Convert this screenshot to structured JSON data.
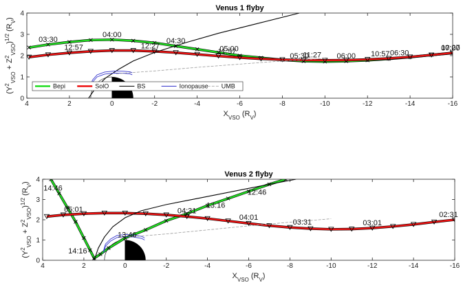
{
  "colors": {
    "bepi": "#22dd22",
    "solo": "#ee1111",
    "bs": "#000000",
    "ionopause": "#3333cc",
    "umb": "#999999",
    "axis": "#222222"
  },
  "legend_labels": [
    "Bepi",
    "SolO",
    "BS",
    "Ionopause",
    "UMB"
  ],
  "chart_data": [
    {
      "type": "line",
      "title": "Venus 1 flyby",
      "xlabel": "X_VSO (R_V)",
      "ylabel": "(Y²_VSO + Z²_VSO)^1/2 (R_V)",
      "xlim": [
        4,
        -16
      ],
      "ylim": [
        0,
        4
      ],
      "xticks": [
        4,
        2,
        0,
        -2,
        -4,
        -6,
        -8,
        -10,
        -12,
        -14,
        -16
      ],
      "yticks": [
        0,
        1,
        2,
        3,
        4
      ],
      "legend_position": "lower-left",
      "series": [
        {
          "name": "Bepi",
          "x": [
            3.9,
            3.0,
            2.0,
            1.0,
            0.0,
            -1.0,
            -2.0,
            -3.0,
            -4.0,
            -5.0,
            -6.0,
            -7.0,
            -8.0,
            -9.0,
            -10.0,
            -11.0,
            -12.0,
            -13.0,
            -14.0,
            -15.0,
            -16.0
          ],
          "y": [
            2.38,
            2.52,
            2.64,
            2.73,
            2.75,
            2.7,
            2.6,
            2.45,
            2.3,
            2.15,
            2.0,
            1.9,
            1.8,
            1.74,
            1.72,
            1.74,
            1.78,
            1.85,
            1.93,
            2.03,
            2.12
          ]
        },
        {
          "name": "SolO",
          "x": [
            3.9,
            3.0,
            2.0,
            1.0,
            0.0,
            -1.0,
            -2.0,
            -3.0,
            -4.0,
            -5.0,
            -6.0,
            -7.0,
            -8.0,
            -9.0,
            -10.0,
            -11.0,
            -12.0,
            -13.0,
            -14.0,
            -15.0,
            -16.0
          ],
          "y": [
            1.93,
            2.04,
            2.13,
            2.2,
            2.24,
            2.24,
            2.2,
            2.14,
            2.06,
            1.98,
            1.91,
            1.85,
            1.81,
            1.79,
            1.78,
            1.79,
            1.82,
            1.87,
            1.94,
            2.03,
            2.13
          ]
        },
        {
          "name": "BS",
          "x": [
            -8.8,
            -7.0,
            -5.0,
            -3.5,
            -2.0,
            -1.0,
            -0.3,
            0.3,
            0.75,
            1.0,
            1.1
          ],
          "y": [
            4.0,
            3.55,
            3.05,
            2.62,
            2.15,
            1.75,
            1.35,
            0.95,
            0.5,
            0.15,
            0.0
          ]
        },
        {
          "name": "Ionopause",
          "x": [
            -0.95,
            -0.85,
            -0.55,
            -0.1,
            0.35,
            0.7,
            0.92,
            1.02
          ],
          "y": [
            1.1,
            1.14,
            1.17,
            1.18,
            1.13,
            1.0,
            0.75,
            0.4
          ]
        },
        {
          "name": "UMB",
          "x": [
            -0.2,
            -2.0,
            -4.0,
            -6.0,
            -8.0,
            -10.0
          ],
          "y": [
            1.15,
            1.28,
            1.45,
            1.6,
            1.75,
            1.87
          ]
        }
      ],
      "annotations": [
        {
          "text": "03:30",
          "x": 3.0,
          "y": 2.52
        },
        {
          "text": "04:00",
          "x": 0.0,
          "y": 2.75
        },
        {
          "text": "04:30",
          "x": -3.0,
          "y": 2.45
        },
        {
          "text": "05:00",
          "x": -5.5,
          "y": 2.08
        },
        {
          "text": "05:30",
          "x": -8.8,
          "y": 1.75
        },
        {
          "text": "06:00",
          "x": -11.0,
          "y": 1.74
        },
        {
          "text": "06:30",
          "x": -13.5,
          "y": 1.89
        },
        {
          "text": "07:00",
          "x": -15.9,
          "y": 2.11
        },
        {
          "text": "12:57",
          "x": 1.8,
          "y": 2.14
        },
        {
          "text": "12:27",
          "x": -1.8,
          "y": 2.21
        },
        {
          "text": "11:57",
          "x": -5.4,
          "y": 1.95
        },
        {
          "text": "11:27",
          "x": -9.4,
          "y": 1.79
        },
        {
          "text": "10:57",
          "x": -12.6,
          "y": 1.84
        },
        {
          "text": "10:27",
          "x": -15.9,
          "y": 2.13
        }
      ]
    },
    {
      "type": "line",
      "title": "Venus 2 flyby",
      "xlabel": "X_VSO (R_V)",
      "ylabel": "(Y²_VSO + Z²_VSO)^1/2 (R_V)",
      "xlim": [
        4,
        -16
      ],
      "ylim": [
        0,
        4
      ],
      "xticks": [
        4,
        2,
        0,
        -2,
        -4,
        -6,
        -8,
        -10,
        -12,
        -14,
        -16
      ],
      "yticks": [
        0,
        1,
        2,
        3,
        4
      ],
      "series": [
        {
          "name": "Bepi",
          "x": [
            3.6,
            3.2,
            2.8,
            2.4,
            2.0,
            1.7,
            1.5,
            1.2,
            0.8,
            0.0,
            -1.0,
            -2.0,
            -3.0,
            -4.0,
            -5.0,
            -6.0,
            -7.0,
            -7.8
          ],
          "y": [
            4.0,
            3.3,
            2.6,
            1.9,
            1.1,
            0.5,
            0.1,
            0.3,
            0.6,
            1.1,
            1.5,
            1.95,
            2.3,
            2.7,
            3.05,
            3.4,
            3.75,
            4.0
          ]
        },
        {
          "name": "SolO",
          "x": [
            3.8,
            3.0,
            2.0,
            1.0,
            0.0,
            -1.0,
            -2.0,
            -3.0,
            -4.0,
            -5.0,
            -6.0,
            -7.0,
            -8.0,
            -9.0,
            -10.0,
            -11.0,
            -12.0,
            -13.0,
            -14.0,
            -15.0,
            -16.0
          ],
          "y": [
            2.16,
            2.24,
            2.3,
            2.33,
            2.33,
            2.3,
            2.24,
            2.16,
            2.06,
            1.94,
            1.82,
            1.71,
            1.62,
            1.56,
            1.53,
            1.54,
            1.59,
            1.67,
            1.77,
            1.89,
            2.0
          ]
        },
        {
          "name": "BS",
          "x": [
            -8.3,
            -7.0,
            -5.0,
            -3.5,
            -2.0,
            -0.8,
            0.0,
            0.6,
            1.0,
            1.3,
            1.5
          ],
          "y": [
            4.0,
            3.75,
            3.35,
            3.05,
            2.75,
            2.45,
            2.1,
            1.65,
            1.15,
            0.6,
            0.0
          ]
        },
        {
          "name": "Ionopause",
          "x": [
            -0.95,
            -0.8,
            -0.4,
            0.0,
            0.4,
            0.7,
            0.95,
            1.05
          ],
          "y": [
            1.0,
            1.08,
            1.15,
            1.17,
            1.12,
            0.95,
            0.7,
            0.35
          ]
        },
        {
          "name": "UMB",
          "x": [
            -0.2,
            -2.0,
            -4.0,
            -6.0,
            -8.0,
            -10.0
          ],
          "y": [
            1.15,
            1.3,
            1.5,
            1.7,
            1.88,
            2.05
          ]
        }
      ],
      "annotations": [
        {
          "text": "14:46",
          "x": 3.5,
          "y": 3.3
        },
        {
          "text": "05:01",
          "x": 2.5,
          "y": 2.25
        },
        {
          "text": "14:16",
          "x": 2.3,
          "y": 0.2
        },
        {
          "text": "13:46",
          "x": -0.1,
          "y": 1.0
        },
        {
          "text": "04:31",
          "x": -3.0,
          "y": 2.18
        },
        {
          "text": "13:16",
          "x": -4.4,
          "y": 2.45
        },
        {
          "text": "04:01",
          "x": -6.0,
          "y": 1.86
        },
        {
          "text": "12:46",
          "x": -6.4,
          "y": 3.1
        },
        {
          "text": "03:31",
          "x": -8.6,
          "y": 1.62
        },
        {
          "text": "03:01",
          "x": -12.0,
          "y": 1.6
        },
        {
          "text": "02:31",
          "x": -15.7,
          "y": 2.0
        }
      ]
    }
  ]
}
